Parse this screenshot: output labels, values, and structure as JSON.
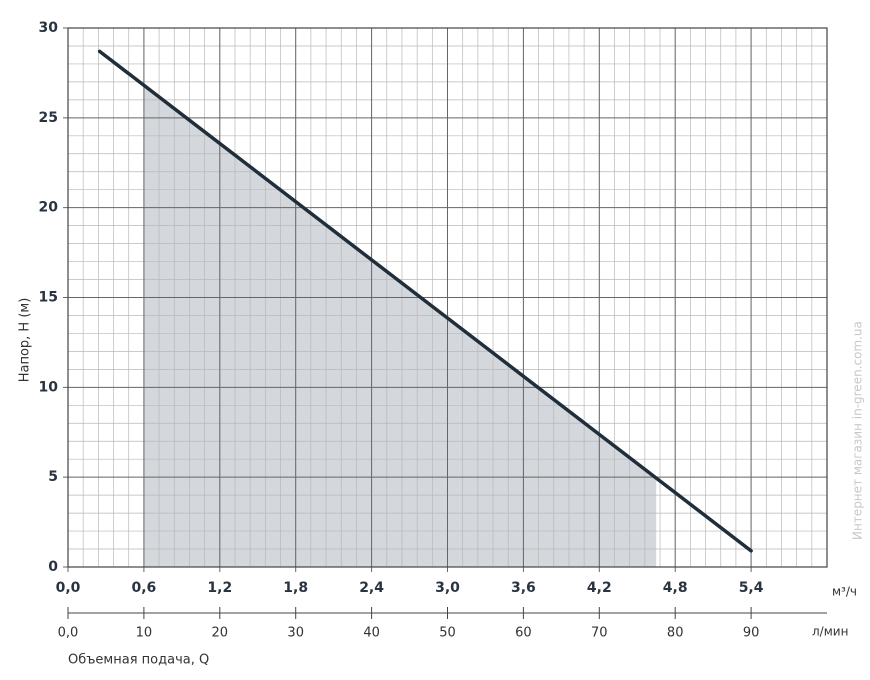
{
  "chart_data": {
    "type": "line",
    "x_label": "Объемная подача, Q",
    "y_label": "Напор, H (м)",
    "x_unit": "м³/ч",
    "x2_unit": "л/мин",
    "watermark": "Интернет магазин in-green.com.ua",
    "x": [
      0.25,
      5.4
    ],
    "series": [
      {
        "color": "#1f2e3a",
        "values": [
          28.7,
          0.9
        ]
      }
    ],
    "shaded_range": [
      0.6,
      4.65
    ],
    "shade_color": "#d4d7db",
    "xlim": [
      0,
      6.0
    ],
    "xticks": [
      {
        "value": 0,
        "label": "0,0"
      },
      {
        "value": 0.6,
        "label": "0,6"
      },
      {
        "value": 1.2,
        "label": "1,2"
      },
      {
        "value": 1.8,
        "label": "1,8"
      },
      {
        "value": 2.4,
        "label": "2,4"
      },
      {
        "value": 3.0,
        "label": "3,0"
      },
      {
        "value": 3.6,
        "label": "3,6"
      },
      {
        "value": 4.2,
        "label": "4,2"
      },
      {
        "value": 4.8,
        "label": "4,8"
      },
      {
        "value": 5.4,
        "label": "5,4"
      }
    ],
    "x2lim": [
      0,
      100
    ],
    "x2ticks": [
      {
        "value": 0,
        "label": "0,0"
      },
      10,
      20,
      30,
      40,
      50,
      60,
      70,
      80,
      90
    ],
    "ylim": [
      0,
      30
    ],
    "yticks": [
      0,
      5,
      10,
      15,
      20,
      25,
      30
    ],
    "grid": true,
    "grid_subdivisions": 5
  }
}
